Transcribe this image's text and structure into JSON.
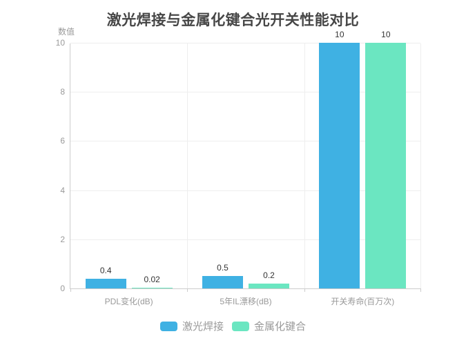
{
  "chart_data": {
    "type": "bar",
    "title": "激光焊接与金属化键合光开关性能对比",
    "ylabel": "数值",
    "xlabel": "",
    "categories": [
      "PDL变化(dB)",
      "5年IL漂移(dB)",
      "开关寿命(百万次)"
    ],
    "series": [
      {
        "name": "激光焊接",
        "color": "#3fb1e3",
        "values": [
          0.4,
          0.5,
          10
        ]
      },
      {
        "name": "金属化键合",
        "color": "#6be6c1",
        "values": [
          0.02,
          0.2,
          10
        ]
      }
    ],
    "ylim": [
      0,
      10
    ],
    "yticks": [
      0,
      2,
      4,
      6,
      8,
      10
    ],
    "grid": true,
    "value_labels_shown": true,
    "legend_position": "bottom"
  },
  "colors": {
    "background": "#ffffff",
    "title_text": "#464646",
    "axis_line": "#cccccc",
    "grid_line": "#eeeeee",
    "axis_label_text": "#999999",
    "value_label_text": "#333333",
    "legend_text": "#999999"
  }
}
